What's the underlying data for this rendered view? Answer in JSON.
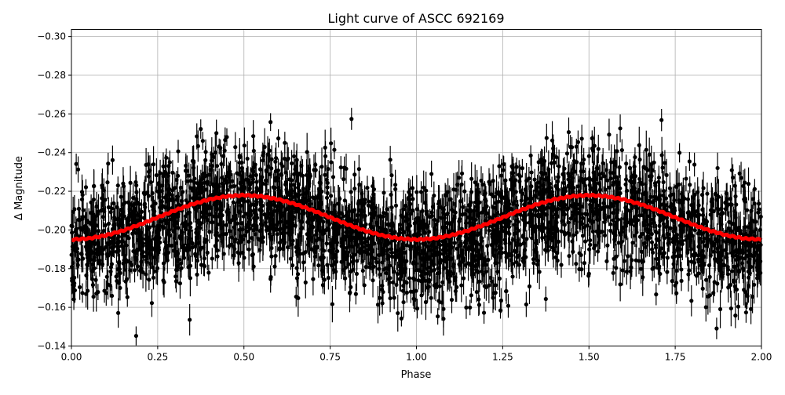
{
  "chart_data": {
    "type": "scatter",
    "title": "Light curve of ASCC 692169",
    "xlabel": "Phase",
    "ylabel": "Δ Magnitude",
    "xlim": [
      0,
      2
    ],
    "ylim": [
      -0.14,
      -0.3037
    ],
    "y_inverted": true,
    "grid": true,
    "x_ticks": [
      "0.00",
      "0.25",
      "0.50",
      "0.75",
      "1.00",
      "1.25",
      "1.50",
      "1.75",
      "2.00"
    ],
    "x_tick_values": [
      0,
      0.25,
      0.5,
      0.75,
      1.0,
      1.25,
      1.5,
      1.75,
      2.0
    ],
    "y_ticks": [
      "−0.30",
      "−0.28",
      "−0.26",
      "−0.24",
      "−0.22",
      "−0.20",
      "−0.18",
      "−0.16",
      "−0.14"
    ],
    "y_tick_values": [
      -0.3,
      -0.28,
      -0.26,
      -0.24,
      -0.22,
      -0.2,
      -0.18,
      -0.16,
      -0.14
    ],
    "series": [
      {
        "kind": "errorbar-points",
        "color": "#000000",
        "note_points": "dense photometric measurements with error bars, scattered about the binned curve"
      },
      {
        "kind": "line",
        "color": "#ff0000",
        "x": [
          0,
          0.05,
          0.1,
          0.15,
          0.2,
          0.25,
          0.3,
          0.35,
          0.4,
          0.45,
          0.5,
          0.55,
          0.6,
          0.65,
          0.7,
          0.75,
          0.8,
          0.85,
          0.9,
          0.95,
          1.0,
          1.05,
          1.1,
          1.15,
          1.2,
          1.25,
          1.3,
          1.35,
          1.4,
          1.45,
          1.5,
          1.55,
          1.6,
          1.65,
          1.7,
          1.75,
          1.8,
          1.85,
          1.9,
          1.95,
          2.0
        ],
        "y": [
          -0.195,
          -0.1956,
          -0.1972,
          -0.1997,
          -0.2029,
          -0.2065,
          -0.2101,
          -0.2133,
          -0.2158,
          -0.2174,
          -0.218,
          -0.2174,
          -0.2158,
          -0.2133,
          -0.2101,
          -0.2065,
          -0.2029,
          -0.1997,
          -0.1972,
          -0.1956,
          -0.195,
          -0.1956,
          -0.1972,
          -0.1997,
          -0.2029,
          -0.2065,
          -0.2101,
          -0.2133,
          -0.2158,
          -0.2174,
          -0.218,
          -0.2174,
          -0.2158,
          -0.2133,
          -0.2101,
          -0.2065,
          -0.2029,
          -0.1997,
          -0.1972,
          -0.1956,
          -0.195
        ]
      }
    ]
  }
}
